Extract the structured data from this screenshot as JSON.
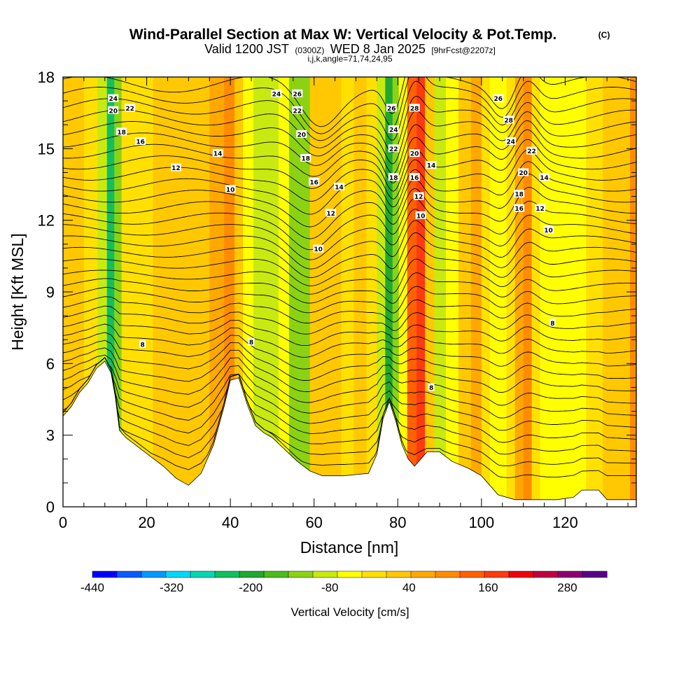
{
  "title": {
    "main": "Wind-Parallel Section at Max W: Vertical Velocity & Pot.Temp.",
    "mark": "(C)",
    "valid_a": "Valid 1200 JST",
    "valid_b": "(0300Z)",
    "valid_c": "WED 8 Jan 2025",
    "valid_d": "[9hrFcst@2207z]",
    "indices": "i,j,k,angle=71,74,24,95"
  },
  "chart_data": {
    "type": "heatmap",
    "xlabel": "Distance [nm]",
    "ylabel": "Height [Kft MSL]",
    "xlim": [
      0,
      137
    ],
    "ylim": [
      0,
      18
    ],
    "x_ticks": [
      0,
      20,
      40,
      60,
      80,
      100,
      120
    ],
    "y_ticks": [
      0,
      3,
      6,
      9,
      12,
      15,
      18
    ],
    "grid": false,
    "colorbar": {
      "label": "Vertical Velocity [cm/s]",
      "tick_labels": [
        "-440",
        "-320",
        "-200",
        "-80",
        "40",
        "160",
        "280"
      ],
      "tick_values": [
        -440,
        -320,
        -200,
        -80,
        40,
        160,
        280
      ],
      "min": -440,
      "max": 340,
      "step": 40,
      "colors": [
        "#0000ff",
        "#0a5aff",
        "#0099ff",
        "#00d8f8",
        "#00d8b0",
        "#10c060",
        "#20a830",
        "#4cbb1c",
        "#8cd214",
        "#c8ea10",
        "#ffff00",
        "#ffe000",
        "#ffc800",
        "#ffa800",
        "#ff8c00",
        "#ff6000",
        "#ff3a10",
        "#ee0010",
        "#c00040",
        "#8c0070",
        "#58008c"
      ]
    },
    "w_columns": [
      {
        "x": 0,
        "w": 60
      },
      {
        "x": 3,
        "w": 50
      },
      {
        "x": 7,
        "w": 20
      },
      {
        "x": 9.5,
        "w": -60
      },
      {
        "x": 11.5,
        "w": -230
      },
      {
        "x": 13,
        "w": -100
      },
      {
        "x": 15,
        "w": 30
      },
      {
        "x": 19,
        "w": 20
      },
      {
        "x": 24,
        "w": 70
      },
      {
        "x": 29,
        "w": 40
      },
      {
        "x": 33,
        "w": 70
      },
      {
        "x": 37,
        "w": 90
      },
      {
        "x": 40,
        "w": 150
      },
      {
        "x": 42,
        "w": 40
      },
      {
        "x": 44,
        "w": -40
      },
      {
        "x": 47,
        "w": -80
      },
      {
        "x": 50,
        "w": -60
      },
      {
        "x": 53,
        "w": -20
      },
      {
        "x": 55,
        "w": -120
      },
      {
        "x": 57,
        "w": -90
      },
      {
        "x": 61,
        "w": 40
      },
      {
        "x": 65,
        "w": 60
      },
      {
        "x": 68,
        "w": 30
      },
      {
        "x": 71,
        "w": 60
      },
      {
        "x": 74,
        "w": 30
      },
      {
        "x": 76,
        "w": -60
      },
      {
        "x": 78,
        "w": -200
      },
      {
        "x": 79.5,
        "w": -120
      },
      {
        "x": 81,
        "w": -40
      },
      {
        "x": 83.5,
        "w": 160
      },
      {
        "x": 85.5,
        "w": 200
      },
      {
        "x": 87.5,
        "w": 60
      },
      {
        "x": 90,
        "w": -60
      },
      {
        "x": 93,
        "w": -20
      },
      {
        "x": 96,
        "w": 40
      },
      {
        "x": 99,
        "w": 80
      },
      {
        "x": 101,
        "w": 30
      },
      {
        "x": 103,
        "w": -30
      },
      {
        "x": 105,
        "w": -40
      },
      {
        "x": 107,
        "w": 10
      },
      {
        "x": 109,
        "w": 80
      },
      {
        "x": 111,
        "w": 120
      },
      {
        "x": 113,
        "w": 30
      },
      {
        "x": 115,
        "w": -30
      },
      {
        "x": 117,
        "w": -20
      },
      {
        "x": 120,
        "w": -40
      },
      {
        "x": 123,
        "w": -10
      },
      {
        "x": 127,
        "w": 20
      },
      {
        "x": 131,
        "w": 40
      },
      {
        "x": 134,
        "w": 70
      },
      {
        "x": 137,
        "w": 140
      }
    ],
    "terrain_kft": [
      [
        0,
        3.8
      ],
      [
        2,
        4.2
      ],
      [
        4,
        4.8
      ],
      [
        6,
        5.2
      ],
      [
        8,
        5.8
      ],
      [
        10,
        6.1
      ],
      [
        11.5,
        5.6
      ],
      [
        12.5,
        4.6
      ],
      [
        13.5,
        3.2
      ],
      [
        15,
        2.9
      ],
      [
        18,
        2.5
      ],
      [
        21,
        2.1
      ],
      [
        24,
        1.7
      ],
      [
        27,
        1.2
      ],
      [
        30,
        0.9
      ],
      [
        33,
        1.4
      ],
      [
        36,
        2.6
      ],
      [
        38.5,
        4.2
      ],
      [
        40,
        5.3
      ],
      [
        42,
        5.4
      ],
      [
        44,
        4.3
      ],
      [
        46,
        3.4
      ],
      [
        48,
        3.1
      ],
      [
        50,
        2.9
      ],
      [
        53,
        2.4
      ],
      [
        56,
        1.9
      ],
      [
        59,
        1.5
      ],
      [
        62,
        1.3
      ],
      [
        67,
        1.3
      ],
      [
        73,
        1.4
      ],
      [
        75,
        2.2
      ],
      [
        76.5,
        3.7
      ],
      [
        78,
        4.4
      ],
      [
        79.5,
        3.6
      ],
      [
        81,
        2.6
      ],
      [
        82.5,
        2.0
      ],
      [
        84,
        1.7
      ],
      [
        85.5,
        2.0
      ],
      [
        87,
        2.3
      ],
      [
        90,
        2.3
      ],
      [
        93,
        1.9
      ],
      [
        97,
        1.6
      ],
      [
        100,
        1.3
      ],
      [
        104,
        0.5
      ],
      [
        108,
        0.3
      ],
      [
        113,
        0.3
      ],
      [
        118,
        0.3
      ],
      [
        122,
        0.4
      ],
      [
        124,
        0.7
      ],
      [
        128,
        0.7
      ],
      [
        130,
        0.3
      ],
      [
        137,
        0.3
      ]
    ],
    "isentrope_labels": [
      {
        "x": 12,
        "y": 17.1,
        "label": "24"
      },
      {
        "x": 16,
        "y": 16.7,
        "label": "22"
      },
      {
        "x": 12,
        "y": 16.6,
        "label": "20"
      },
      {
        "x": 14,
        "y": 15.7,
        "label": "18"
      },
      {
        "x": 18.5,
        "y": 15.3,
        "label": "16"
      },
      {
        "x": 37,
        "y": 14.8,
        "label": "14"
      },
      {
        "x": 27,
        "y": 14.2,
        "label": "12"
      },
      {
        "x": 40,
        "y": 13.3,
        "label": "10"
      },
      {
        "x": 51,
        "y": 17.3,
        "label": "24"
      },
      {
        "x": 56,
        "y": 17.3,
        "label": "26"
      },
      {
        "x": 56,
        "y": 16.6,
        "label": "22"
      },
      {
        "x": 57,
        "y": 15.6,
        "label": "20"
      },
      {
        "x": 58,
        "y": 14.6,
        "label": "18"
      },
      {
        "x": 60,
        "y": 13.6,
        "label": "16"
      },
      {
        "x": 66,
        "y": 13.4,
        "label": "14"
      },
      {
        "x": 64,
        "y": 12.3,
        "label": "12"
      },
      {
        "x": 61,
        "y": 10.8,
        "label": "10"
      },
      {
        "x": 78.5,
        "y": 16.7,
        "label": "26"
      },
      {
        "x": 84,
        "y": 16.7,
        "label": "28"
      },
      {
        "x": 79,
        "y": 15.8,
        "label": "24"
      },
      {
        "x": 79,
        "y": 15,
        "label": "22"
      },
      {
        "x": 84,
        "y": 14.8,
        "label": "20"
      },
      {
        "x": 88,
        "y": 14.3,
        "label": "14"
      },
      {
        "x": 79,
        "y": 13.8,
        "label": "18"
      },
      {
        "x": 84,
        "y": 13.8,
        "label": "16"
      },
      {
        "x": 85,
        "y": 13,
        "label": "12"
      },
      {
        "x": 85.5,
        "y": 12.2,
        "label": "10"
      },
      {
        "x": 104,
        "y": 17.1,
        "label": "26"
      },
      {
        "x": 106.5,
        "y": 16.2,
        "label": "28"
      },
      {
        "x": 107,
        "y": 15.3,
        "label": "24"
      },
      {
        "x": 112,
        "y": 14.9,
        "label": "22"
      },
      {
        "x": 110,
        "y": 14,
        "label": "20"
      },
      {
        "x": 115,
        "y": 13.8,
        "label": "14"
      },
      {
        "x": 109,
        "y": 13.1,
        "label": "18"
      },
      {
        "x": 109,
        "y": 12.5,
        "label": "16"
      },
      {
        "x": 114,
        "y": 12.5,
        "label": "12"
      },
      {
        "x": 116,
        "y": 11.6,
        "label": "10"
      },
      {
        "x": 19,
        "y": 6.8,
        "label": "8"
      },
      {
        "x": 45,
        "y": 6.9,
        "label": "8"
      },
      {
        "x": 88,
        "y": 5,
        "label": "8"
      },
      {
        "x": 117,
        "y": 7.7,
        "label": "8"
      }
    ]
  }
}
